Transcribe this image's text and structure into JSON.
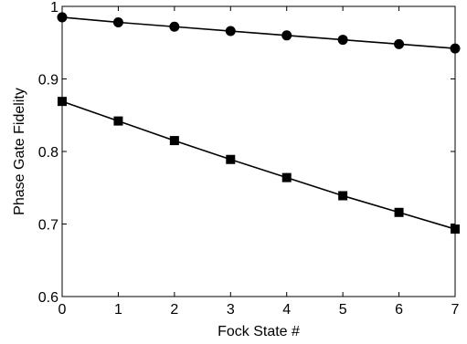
{
  "chart_data": {
    "type": "line",
    "title": "",
    "xlabel": "Fock State #",
    "ylabel": "Phase Gate Fidelity",
    "xlim": [
      0,
      7
    ],
    "ylim": [
      0.6,
      1.0
    ],
    "x_ticks": [
      0,
      1,
      2,
      3,
      4,
      5,
      6,
      7
    ],
    "x_tick_labels": [
      "0",
      "1",
      "2",
      "3",
      "4",
      "5",
      "6",
      "7"
    ],
    "y_ticks": [
      0.6,
      0.7,
      0.8,
      0.9,
      1.0
    ],
    "y_tick_labels": [
      "0.6",
      "0.7",
      "0.8",
      "0.9",
      "1"
    ],
    "grid": false,
    "legend": "none",
    "line_color": "#000000",
    "x": [
      0,
      1,
      2,
      3,
      4,
      5,
      6,
      7
    ],
    "series": [
      {
        "marker": "circle",
        "values": [
          0.985,
          0.978,
          0.972,
          0.966,
          0.96,
          0.954,
          0.948,
          0.942
        ]
      },
      {
        "marker": "square",
        "values": [
          0.869,
          0.842,
          0.815,
          0.789,
          0.764,
          0.739,
          0.716,
          0.693
        ]
      }
    ]
  }
}
